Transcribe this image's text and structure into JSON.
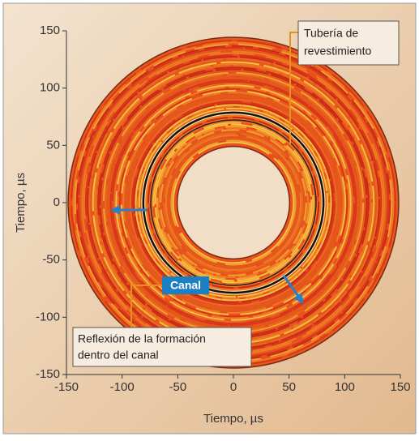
{
  "chart_data": {
    "type": "polar-image",
    "xlabel": "Tiempo, µs",
    "ylabel": "Tiempo, µs",
    "xlim": [
      -150,
      150
    ],
    "ylim": [
      -150,
      150
    ],
    "xticks": [
      -150,
      -100,
      -50,
      0,
      50,
      100,
      150
    ],
    "yticks": [
      -150,
      -100,
      -50,
      0,
      50,
      100,
      150
    ],
    "annotations": [
      {
        "lines": [
          "Tubería de",
          "revestimiento"
        ]
      },
      {
        "lines": [
          "Canal"
        ]
      },
      {
        "lines": [
          "Reflexión de la formación",
          "dentro del canal"
        ]
      }
    ]
  }
}
